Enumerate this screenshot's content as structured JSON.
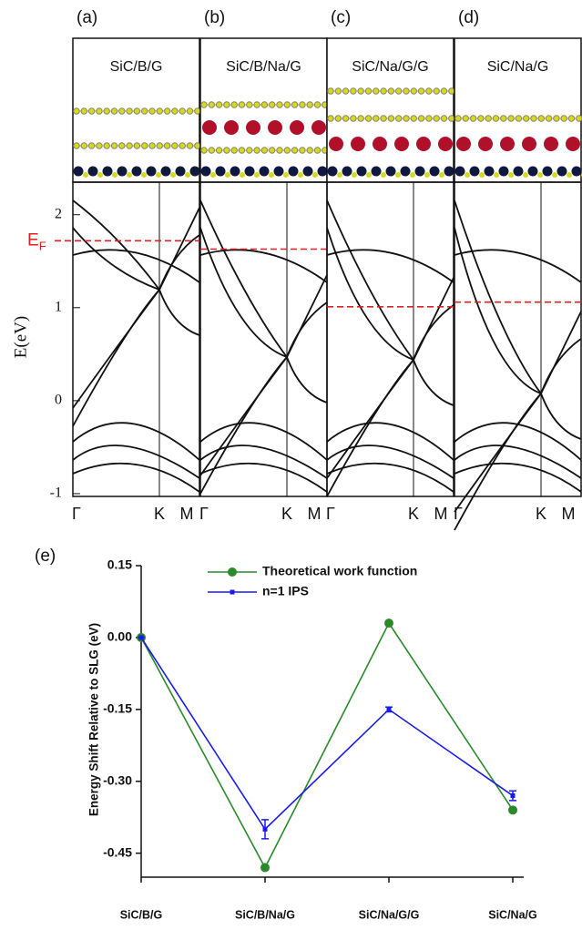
{
  "chart_data": [
    {
      "type": "band_structure",
      "panels": [
        {
          "label": "(a)",
          "title": "SiC/B/G",
          "fermi_level": 1.72
        },
        {
          "label": "(b)",
          "title": "SiC/B/Na/G",
          "fermi_level": 1.63
        },
        {
          "label": "(c)",
          "title": "SiC/Na/G/G",
          "fermi_level": 1.01
        },
        {
          "label": "(d)",
          "title": "SiC/Na/G",
          "fermi_level": 1.06
        }
      ],
      "ylabel": "E(eV)",
      "ef_label": "E",
      "ef_subscript": "F",
      "kpoints": [
        "Γ",
        "K",
        "M"
      ],
      "ylim": [
        -1.03,
        2.35
      ],
      "yticks": [
        -1,
        0,
        1,
        2
      ]
    },
    {
      "type": "line",
      "panel_label": "(e)",
      "ylabel": "Energy Shift Relative to SLG (eV)",
      "categories": [
        "SiC/B/G",
        "SiC/B/Na/G",
        "SiC/Na/G/G",
        "SiC/Na/G"
      ],
      "series": [
        {
          "name": "Theoretical work function",
          "color": "#2a8a2a",
          "marker": "circle",
          "values": [
            0,
            -0.48,
            0.03,
            -0.36
          ]
        },
        {
          "name": "n=1 IPS",
          "color": "#1a1aee",
          "marker": "square",
          "values": [
            0,
            -0.4,
            -0.15,
            -0.33
          ],
          "errors": [
            0,
            0.02,
            0.005,
            0.01
          ]
        }
      ],
      "ylim": [
        -0.5,
        0.15
      ],
      "yticks": [
        {
          "value": 0.15,
          "label": "0.15"
        },
        {
          "value": 0,
          "label": "0.00"
        },
        -0.15,
        {
          "value": -0.3,
          "label": "-0.30"
        },
        -0.45
      ]
    }
  ]
}
